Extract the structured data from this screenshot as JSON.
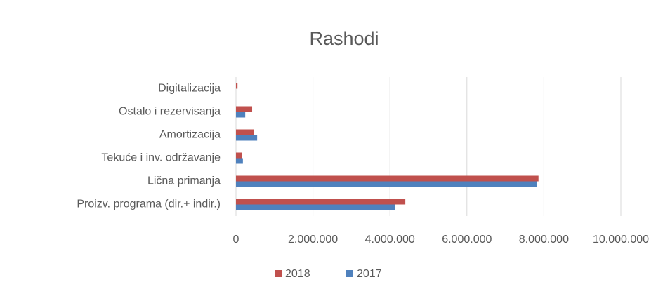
{
  "chart_data": {
    "type": "bar",
    "orientation": "horizontal",
    "title": "Rashodi",
    "categories": [
      "Proizv. programa (dir.+ indir.)",
      "Lična primanja",
      "Tekuće i inv. održavanje",
      "Amortizacija",
      "Ostalo i rezervisanja",
      "Digitalizacija"
    ],
    "series": [
      {
        "name": "2018",
        "color": "#c0504d",
        "values": [
          4400000,
          7860000,
          160000,
          460000,
          420000,
          40000
        ]
      },
      {
        "name": "2017",
        "color": "#4f81bd",
        "values": [
          4140000,
          7810000,
          180000,
          550000,
          240000,
          0
        ]
      }
    ],
    "xlim": [
      0,
      10000000
    ],
    "xticks": [
      0,
      {
        "value": 2000000,
        "label": "2.000.000"
      },
      {
        "value": 4000000,
        "label": "4.000.000"
      },
      {
        "value": 6000000,
        "label": "6.000.000"
      },
      {
        "value": 8000000,
        "label": "8.000.000"
      },
      {
        "value": 10000000,
        "label": "10.000.000"
      }
    ],
    "grid": true,
    "legend": "bottom"
  }
}
